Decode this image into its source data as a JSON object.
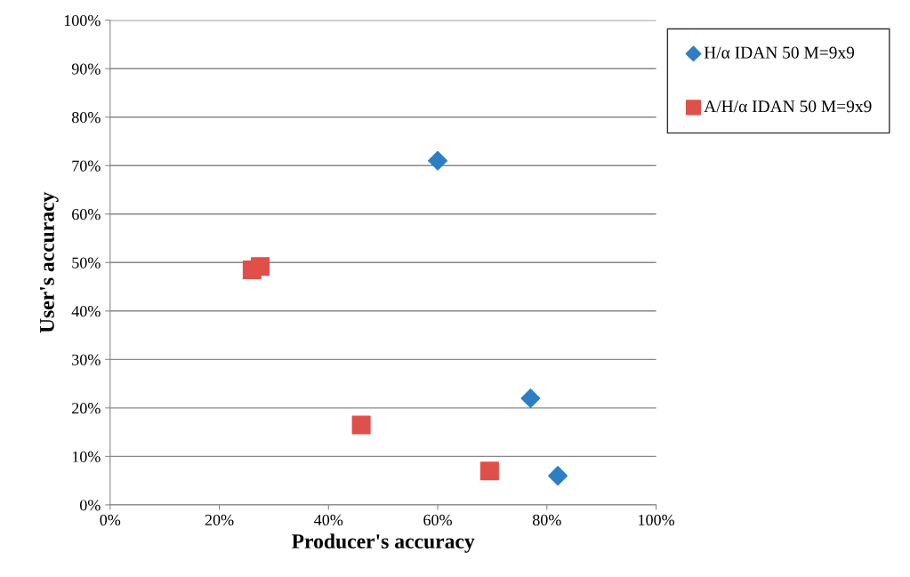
{
  "chart_data": {
    "type": "scatter",
    "xlabel": "Producer's accuracy",
    "ylabel": "User's accuracy",
    "series": [
      {
        "name": "H/α IDAN 50 M=9x9",
        "color": "#2e7ec4",
        "marker": "diamond",
        "x": [
          60,
          77,
          82
        ],
        "values": [
          71,
          22,
          6
        ]
      },
      {
        "name": "A/H/α IDAN 50 M=9x9",
        "color": "#e0504a",
        "marker": "square",
        "x": [
          26,
          27.5,
          46,
          69.5
        ],
        "values": [
          48.5,
          49.2,
          16.5,
          7
        ]
      }
    ],
    "xlim": [
      0,
      100
    ],
    "xticks": [
      {
        "value": 0,
        "label": "0%"
      },
      {
        "value": 20,
        "label": "20%"
      },
      {
        "value": 40,
        "label": "40%"
      },
      {
        "value": 60,
        "label": "60%"
      },
      {
        "value": 80,
        "label": "80%"
      },
      {
        "value": 100,
        "label": "100%"
      }
    ],
    "ylim": [
      0,
      100
    ],
    "yticks": [
      {
        "value": 0,
        "label": "0%"
      },
      {
        "value": 10,
        "label": "10%"
      },
      {
        "value": 20,
        "label": "20%"
      },
      {
        "value": 30,
        "label": "30%"
      },
      {
        "value": 40,
        "label": "40%"
      },
      {
        "value": 50,
        "label": "50%"
      },
      {
        "value": 60,
        "label": "60%"
      },
      {
        "value": 70,
        "label": "70%"
      },
      {
        "value": 80,
        "label": "80%"
      },
      {
        "value": 90,
        "label": "90%"
      },
      {
        "value": 100,
        "label": "100%"
      }
    ],
    "grid": "y",
    "legend": "right"
  }
}
